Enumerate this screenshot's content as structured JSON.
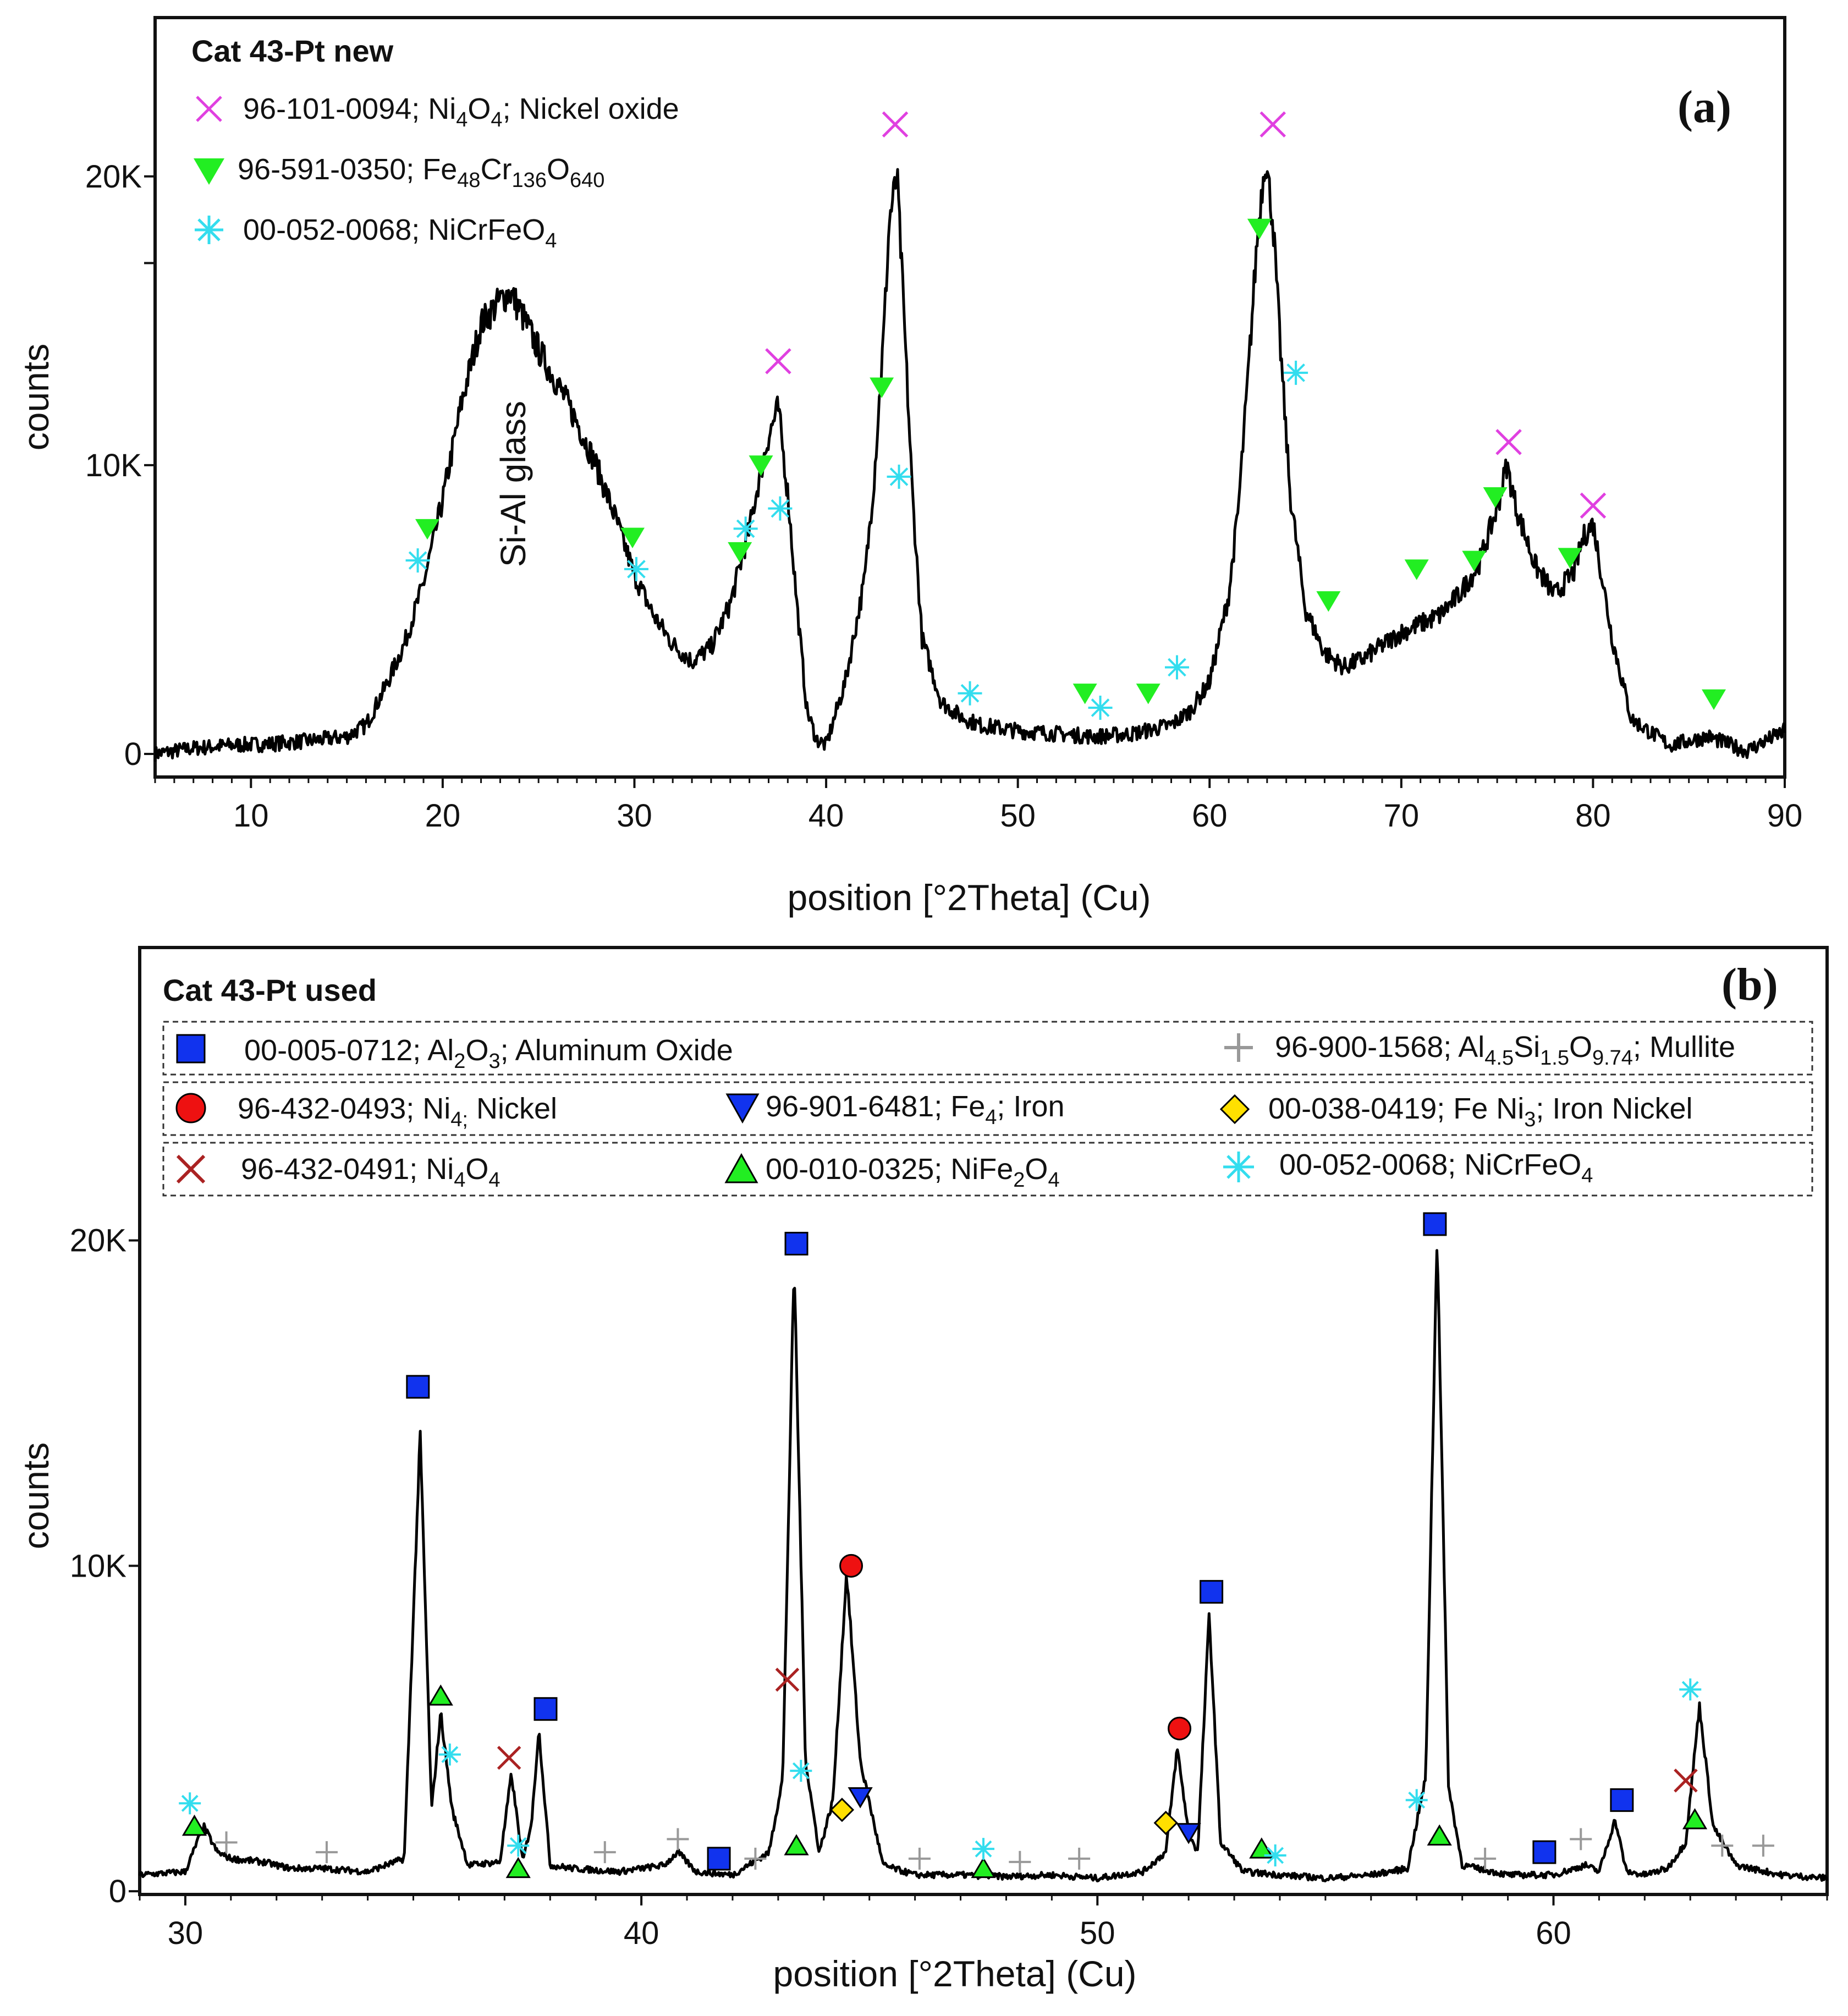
{
  "chart_data": [
    {
      "type": "line",
      "panel_label": "(a)",
      "title": "Cat 43-Pt new",
      "xlabel": "position [°2Theta] (Cu)",
      "ylabel": "counts",
      "xlim": [
        5,
        90
      ],
      "ylim": [
        -800,
        25500
      ],
      "x_ticks": [
        10,
        20,
        30,
        40,
        50,
        60,
        70,
        80,
        90
      ],
      "x_tick_labels": [
        "10",
        "20",
        "30",
        "40",
        "50",
        "60",
        "70",
        "80",
        "90"
      ],
      "y_ticks": [
        0,
        10000,
        20000
      ],
      "y_tick_labels": [
        "0",
        "10K",
        "20K"
      ],
      "annotation": {
        "text": "Si-Al glass",
        "x": 23.5,
        "y": 7000
      },
      "series": [
        {
          "name": "pattern",
          "x": [
            5,
            7,
            9,
            11,
            13,
            15,
            16,
            17,
            18,
            19,
            20,
            21,
            22,
            23,
            23.5,
            24,
            25,
            26,
            27,
            28,
            29,
            30,
            31,
            32,
            33,
            34,
            35,
            36,
            36.5,
            37,
            37.5,
            38,
            38.5,
            39,
            39.5,
            40,
            41,
            42,
            42.5,
            43,
            43.3,
            43.7,
            44,
            44.5,
            45,
            46,
            47,
            48,
            50,
            52,
            54,
            56,
            58,
            59,
            60,
            61,
            61.5,
            62,
            62.5,
            62.9,
            63.3,
            63.7,
            64.2,
            65,
            66,
            67,
            68,
            70,
            72,
            73,
            74,
            75,
            75.5,
            76,
            77,
            78,
            79,
            79.5,
            80,
            81,
            82,
            84,
            86,
            88,
            90
          ],
          "values": [
            0,
            200,
            300,
            350,
            450,
            600,
            1000,
            2300,
            3800,
            5900,
            8800,
            12200,
            14900,
            15700,
            16000,
            15400,
            14000,
            12800,
            11500,
            10000,
            8200,
            6200,
            4800,
            3800,
            3200,
            3700,
            5200,
            7800,
            9500,
            11000,
            12000,
            9000,
            5000,
            1500,
            500,
            300,
            2500,
            6000,
            9500,
            14500,
            18500,
            20000,
            16000,
            9000,
            4000,
            1800,
            1300,
            1000,
            800,
            700,
            600,
            700,
            1000,
            1500,
            2500,
            5500,
            8500,
            13000,
            18000,
            20700,
            18500,
            14000,
            9000,
            5000,
            3500,
            3000,
            3300,
            4200,
            4800,
            5500,
            6500,
            8500,
            10000,
            8500,
            6500,
            5500,
            6300,
            7500,
            8000,
            4000,
            1200,
            300,
            600,
            100,
            800
          ]
        }
      ],
      "markers": [
        {
          "name": "96-101-0094; Ni4O4; Nickel oxide",
          "symbol": "x-mark",
          "color": "#e040e0",
          "x": [
            37.5,
            43.6,
            63.3,
            75.6,
            80
          ],
          "y": [
            13600,
            21800,
            21800,
            10800,
            8600
          ]
        },
        {
          "name": "96-591-0350; Fe48Cr136O640",
          "symbol": "down-triangle",
          "color": "#22ee22",
          "x": [
            19.2,
            29.9,
            35.5,
            36.6,
            42.9,
            62.6,
            66.2,
            70.8,
            73.8,
            74.9,
            78.8,
            86.3,
            53.5,
            56.8
          ],
          "y": [
            7800,
            7500,
            7000,
            10000,
            12700,
            18200,
            5300,
            6400,
            6700,
            8900,
            6800,
            1900,
            2100,
            2100
          ]
        },
        {
          "name": "00-052-0068; NiCrFeO4",
          "symbol": "asterisk",
          "color": "#33ddee",
          "x": [
            18.7,
            30.1,
            35.8,
            37.6,
            43.8,
            47.5,
            54.3,
            58.3,
            64.5
          ],
          "y": [
            6700,
            6400,
            7800,
            8500,
            9600,
            2100,
            1600,
            3000,
            13200
          ]
        }
      ],
      "legend": [
        {
          "id": "96-101-0094",
          "label": "96-101-0094; Ni",
          "sub1": "4",
          "mid": "O",
          "sub2": "4",
          "tail": "; Nickel oxide"
        },
        {
          "id": "96-591-0350",
          "label": "96-591-0350; Fe",
          "sub1": "48",
          "mid": "Cr",
          "sub2": "136",
          "mid2": "O",
          "sub3": "640"
        },
        {
          "id": "00-052-0068",
          "label": "00-052-0068; NiCrFeO",
          "sub1": "4"
        }
      ],
      "legend_position": "top-left"
    },
    {
      "type": "line",
      "panel_label": "(b)",
      "title": "Cat 43-Pt used",
      "xlabel": "position [°2Theta] (Cu)",
      "ylabel": "counts",
      "xlim": [
        29,
        66
      ],
      "ylim": [
        -100,
        29000
      ],
      "x_ticks": [
        30,
        40,
        50,
        60
      ],
      "x_tick_labels": [
        "30",
        "40",
        "50",
        "60"
      ],
      "y_ticks": [
        0,
        10000,
        20000
      ],
      "y_tick_labels": [
        "0",
        "10K",
        "20K"
      ],
      "series": [
        {
          "name": "pattern",
          "x": [
            29,
            30,
            30.2,
            30.4,
            30.7,
            31,
            31.7,
            32.3,
            33,
            34,
            34.8,
            35.15,
            35.4,
            35.6,
            35.85,
            36.2,
            36.9,
            37.15,
            37.4,
            37.6,
            37.75,
            38,
            38.5,
            39.5,
            40.5,
            40.8,
            41.2,
            42,
            42.8,
            43.1,
            43.35,
            43.6,
            43.9,
            44.2,
            44.5,
            44.8,
            45.3,
            46,
            47,
            48,
            49,
            50,
            51,
            51.5,
            51.75,
            52,
            52.2,
            52.45,
            52.7,
            53.2,
            54,
            55,
            56,
            56.8,
            57.2,
            57.45,
            57.7,
            58,
            59,
            60,
            60.7,
            61,
            61.35,
            61.6,
            62,
            62.5,
            62.9,
            63.2,
            63.5,
            64,
            65,
            66
          ],
          "values": [
            500,
            600,
            1300,
            2000,
            1200,
            1000,
            900,
            700,
            700,
            600,
            1000,
            14000,
            2500,
            5500,
            2500,
            800,
            900,
            3600,
            900,
            2200,
            5000,
            800,
            700,
            600,
            800,
            1200,
            600,
            500,
            1200,
            3500,
            19300,
            4000,
            1200,
            2800,
            9800,
            4000,
            800,
            500,
            500,
            450,
            500,
            400,
            600,
            1200,
            4400,
            1800,
            1200,
            8500,
            1500,
            600,
            500,
            400,
            500,
            700,
            3500,
            20300,
            3200,
            800,
            500,
            500,
            800,
            600,
            2200,
            600,
            500,
            700,
            1500,
            5700,
            2000,
            800,
            500,
            400
          ]
        }
      ],
      "markers": [
        {
          "name": "00-005-0712; Al2O3; Aluminum Oxide",
          "symbol": "square",
          "color": "#1133ee",
          "x": [
            35.1,
            37.9,
            41.7,
            43.4,
            52.5,
            57.4,
            59.8,
            61.5
          ],
          "y": [
            15500,
            5600,
            1000,
            19900,
            9200,
            20500,
            1200,
            2800
          ]
        },
        {
          "name": "96-900-1568; Al4.5Si1.5O9.74; Mullite",
          "symbol": "plus",
          "color": "#999999",
          "x": [
            30.9,
            33.1,
            39.2,
            40.8,
            42.5,
            46.1,
            48.3,
            49.6,
            58.5,
            60.6,
            63.7,
            64.6
          ],
          "y": [
            1500,
            1200,
            1200,
            1600,
            1000,
            1000,
            900,
            1000,
            1000,
            1600,
            1400,
            1400
          ]
        },
        {
          "name": "96-432-0493; Ni4; Nickel",
          "symbol": "circle",
          "color": "#ee1111",
          "x": [
            44.6,
            51.8
          ],
          "y": [
            10000,
            5000
          ]
        },
        {
          "name": "96-901-6481; Fe4; Iron",
          "symbol": "down-triangle",
          "color": "#1133ee",
          "x": [
            44.8,
            52.0
          ],
          "y": [
            2900,
            1800
          ]
        },
        {
          "name": "00-038-0419; Fe Ni3; Iron Nickel",
          "symbol": "diamond",
          "color": "#ffe000",
          "x": [
            44.4,
            51.5
          ],
          "y": [
            2500,
            2100
          ]
        },
        {
          "name": "96-432-0491; Ni4O4",
          "symbol": "x-mark",
          "color": "#aa2222",
          "x": [
            37.1,
            43.2,
            62.9
          ],
          "y": [
            4100,
            6500,
            3400
          ]
        },
        {
          "name": "00-010-0325; NiFe2O4",
          "symbol": "up-triangle",
          "color": "#22ee22",
          "x": [
            30.2,
            35.6,
            37.3,
            43.4,
            47.5,
            53.6,
            57.5,
            63.1
          ],
          "y": [
            2000,
            6000,
            700,
            1400,
            700,
            1300,
            1700,
            2200
          ]
        },
        {
          "name": "00-052-0068; NiCrFeO4",
          "symbol": "asterisk",
          "color": "#33ddee",
          "x": [
            30.1,
            35.8,
            37.3,
            43.5,
            47.5,
            53.9,
            57.0,
            63.0
          ],
          "y": [
            2700,
            4200,
            1400,
            3700,
            1300,
            1100,
            2800,
            6200
          ]
        }
      ],
      "legend": [
        {
          "id": "00-005-0712",
          "label": "00-005-0712; Al",
          "sub1": "2",
          "mid": "O",
          "sub2": "3",
          "tail": "; Aluminum Oxide"
        },
        {
          "id": "96-900-1568",
          "label": "96-900-1568; Al",
          "sub1": "4.5",
          "mid": "Si",
          "sub2": "1.5",
          "mid2": "O",
          "sub3": "9.74",
          "tail": "; Mullite"
        },
        {
          "id": "96-432-0493",
          "label": "96-432-0493; Ni",
          "sub1": "4;",
          "tail": " Nickel"
        },
        {
          "id": "96-901-6481",
          "label": "96-901-6481; Fe",
          "sub1": "4",
          "tail": "; Iron"
        },
        {
          "id": "00-038-0419",
          "label": "00-038-0419; Fe Ni",
          "sub1": "3",
          "tail": "; Iron Nickel"
        },
        {
          "id": "96-432-0491",
          "label": "96-432-0491; Ni",
          "sub1": "4",
          "mid": "O",
          "sub2": "4"
        },
        {
          "id": "00-010-0325",
          "label": "00-010-0325; NiFe",
          "sub1": "2",
          "mid": "O",
          "sub2": "4"
        },
        {
          "id": "00-052-0068-b",
          "label": "00-052-0068; NiCrFeO",
          "sub1": "4"
        }
      ],
      "legend_position": "top"
    }
  ]
}
